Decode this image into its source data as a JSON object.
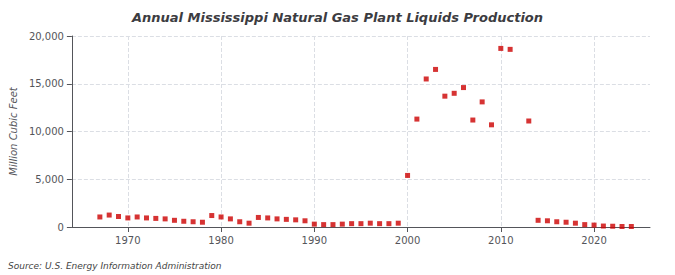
{
  "chart_data": {
    "type": "scatter",
    "title": "Annual Mississippi Natural Gas Plant Liquids Production",
    "ylabel": "Million Cubic Feet",
    "annotation": "Source: U.S. Energy Information Administration",
    "color": "#cc0000",
    "marker": "square",
    "grid": true,
    "xlim": [
      1964,
      2026
    ],
    "xticks": [
      1970,
      1980,
      1990,
      2000,
      2010,
      2020
    ],
    "ylim": [
      0,
      20000
    ],
    "yticks": [
      0,
      {
        "value": 5000,
        "label": "5,000"
      },
      {
        "value": 10000,
        "label": "10,000"
      },
      {
        "value": 15000,
        "label": "15,000"
      },
      {
        "value": 20000,
        "label": "20,000"
      }
    ],
    "x": [
      1967,
      1968,
      1969,
      1970,
      1971,
      1972,
      1973,
      1974,
      1975,
      1976,
      1977,
      1978,
      1979,
      1980,
      1981,
      1982,
      1983,
      1984,
      1985,
      1986,
      1987,
      1988,
      1989,
      1990,
      1991,
      1992,
      1993,
      1994,
      1995,
      1996,
      1997,
      1998,
      1999,
      2000,
      2001,
      2002,
      2003,
      2004,
      2005,
      2006,
      2007,
      2008,
      2009,
      2010,
      2011,
      2013,
      2014,
      2015,
      2016,
      2017,
      2018,
      2019,
      2020,
      2021,
      2022,
      2023,
      2024
    ],
    "values": [
      1050,
      1250,
      1100,
      950,
      1050,
      950,
      900,
      850,
      700,
      600,
      550,
      500,
      1200,
      1050,
      850,
      550,
      400,
      1000,
      950,
      850,
      800,
      750,
      650,
      300,
      250,
      250,
      300,
      350,
      350,
      400,
      350,
      350,
      400,
      5400,
      11300,
      15500,
      16500,
      13700,
      14000,
      14600,
      11200,
      13100,
      10700,
      18700,
      18600,
      11100,
      700,
      650,
      550,
      500,
      400,
      250,
      200,
      100,
      80,
      50,
      50
    ]
  }
}
